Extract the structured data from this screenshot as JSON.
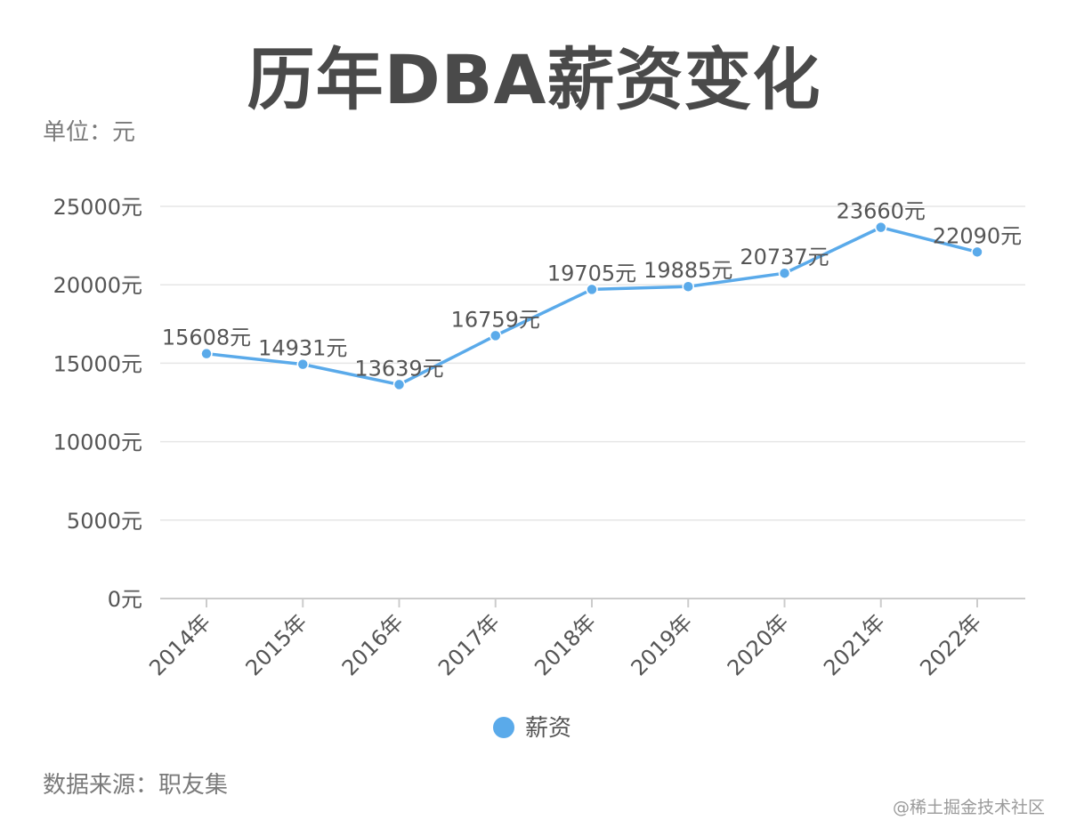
{
  "header": {
    "title": "历年DBA薪资变化",
    "unit_label": "单位：元"
  },
  "footer": {
    "source": "数据来源：职友集",
    "watermark": "@稀土掘金技术社区"
  },
  "chart_data": {
    "type": "line",
    "title": "历年DBA薪资变化",
    "xlabel": "",
    "ylabel": "单位：元",
    "categories": [
      "2014年",
      "2015年",
      "2016年",
      "2017年",
      "2018年",
      "2019年",
      "2020年",
      "2021年",
      "2022年"
    ],
    "series": [
      {
        "name": "薪资",
        "color": "#5aaaea",
        "values": [
          15608,
          14931,
          13639,
          16759,
          19705,
          19885,
          20737,
          23660,
          22090
        ]
      }
    ],
    "value_suffix": "元",
    "ylim": [
      0,
      25000
    ],
    "yticks": [
      0,
      5000,
      10000,
      15000,
      20000,
      25000
    ],
    "grid": true,
    "legend_position": "bottom-center"
  }
}
